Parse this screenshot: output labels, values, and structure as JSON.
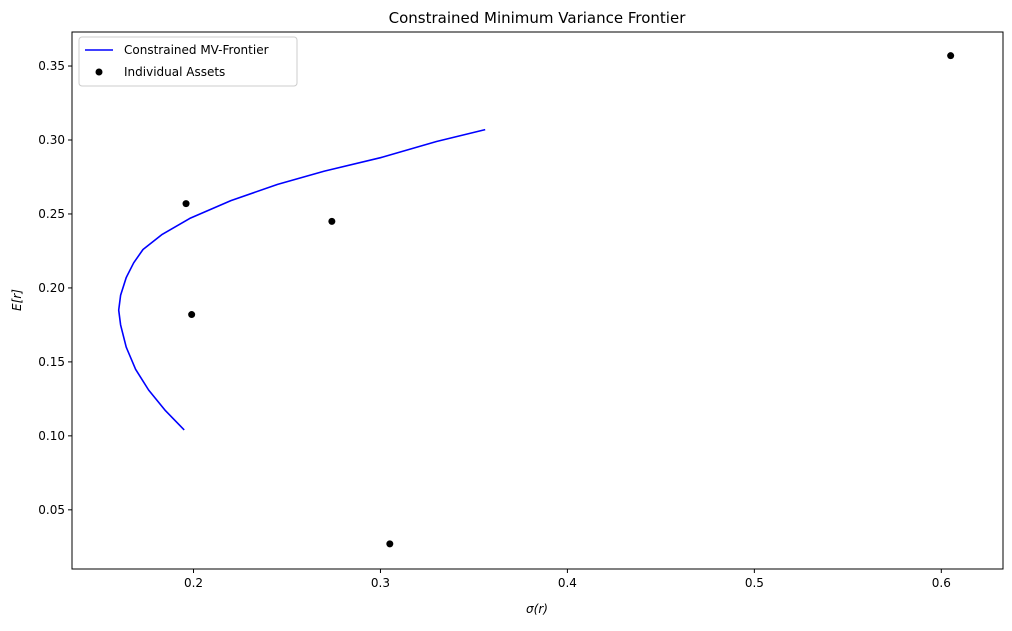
{
  "chart_data": {
    "type": "scatter",
    "title": "Constrained Minimum Variance Frontier",
    "xlabel": "σ(r)",
    "ylabel": "E[r]",
    "xlim": [
      0.135,
      0.633
    ],
    "ylim": [
      0.01,
      0.373
    ],
    "xticks": [
      {
        "value": 0.2,
        "label": "0.2"
      },
      {
        "value": 0.3,
        "label": "0.3"
      },
      {
        "value": 0.4,
        "label": "0.4"
      },
      {
        "value": 0.5,
        "label": "0.5"
      },
      {
        "value": 0.6,
        "label": "0.6"
      }
    ],
    "yticks": [
      {
        "value": 0.05,
        "label": "0.05"
      },
      {
        "value": 0.1,
        "label": "0.10"
      },
      {
        "value": 0.15,
        "label": "0.15"
      },
      {
        "value": 0.2,
        "label": "0.20"
      },
      {
        "value": 0.25,
        "label": "0.25"
      },
      {
        "value": 0.3,
        "label": "0.30"
      },
      {
        "value": 0.35,
        "label": "0.35"
      }
    ],
    "grid": false,
    "legend_position": "top-left",
    "series": [
      {
        "name": "Constrained MV-Frontier",
        "kind": "line",
        "color": "#0000ff",
        "points": [
          [
            0.195,
            0.104
          ],
          [
            0.185,
            0.117
          ],
          [
            0.176,
            0.131
          ],
          [
            0.169,
            0.145
          ],
          [
            0.164,
            0.16
          ],
          [
            0.161,
            0.175
          ],
          [
            0.16,
            0.185
          ],
          [
            0.161,
            0.195
          ],
          [
            0.164,
            0.207
          ],
          [
            0.168,
            0.217
          ],
          [
            0.173,
            0.226
          ],
          [
            0.183,
            0.236
          ],
          [
            0.198,
            0.247
          ],
          [
            0.22,
            0.259
          ],
          [
            0.245,
            0.27
          ],
          [
            0.27,
            0.279
          ],
          [
            0.3,
            0.288
          ],
          [
            0.33,
            0.299
          ],
          [
            0.356,
            0.307
          ]
        ]
      },
      {
        "name": "Individual Assets",
        "kind": "scatter",
        "color": "#000000",
        "points": [
          [
            0.196,
            0.257
          ],
          [
            0.199,
            0.182
          ],
          [
            0.274,
            0.245
          ],
          [
            0.305,
            0.027
          ],
          [
            0.605,
            0.357
          ]
        ]
      }
    ]
  }
}
